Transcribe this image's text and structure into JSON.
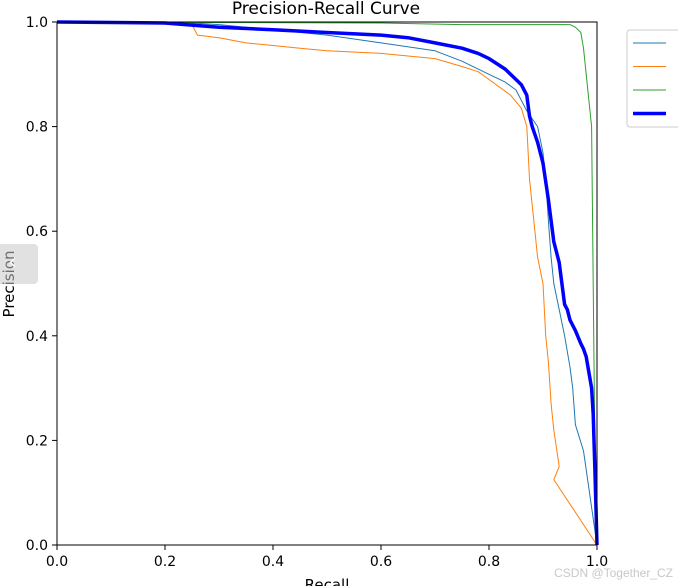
{
  "chart_data": {
    "type": "line",
    "title": "Precision-Recall Curve",
    "xlabel": "Recall",
    "ylabel": "Precision",
    "xlim": [
      0,
      1
    ],
    "ylim": [
      0,
      1
    ],
    "xticks": [
      "0.0",
      "0.2",
      "0.4",
      "0.6",
      "0.8",
      "1.0"
    ],
    "yticks": [
      "0.0",
      "0.2",
      "0.4",
      "0.6",
      "0.8",
      "1.0"
    ],
    "grid": false,
    "legend_position": "top-right, outside plot",
    "series": [
      {
        "name": "",
        "color": "#1f77b4",
        "width": 1,
        "points": [
          [
            0,
            1
          ],
          [
            0.22,
            1
          ],
          [
            0.3,
            0.995
          ],
          [
            0.4,
            0.985
          ],
          [
            0.5,
            0.975
          ],
          [
            0.6,
            0.96
          ],
          [
            0.7,
            0.945
          ],
          [
            0.75,
            0.925
          ],
          [
            0.8,
            0.9
          ],
          [
            0.83,
            0.885
          ],
          [
            0.85,
            0.87
          ],
          [
            0.87,
            0.83
          ],
          [
            0.89,
            0.8
          ],
          [
            0.9,
            0.75
          ],
          [
            0.905,
            0.7
          ],
          [
            0.91,
            0.62
          ],
          [
            0.915,
            0.55
          ],
          [
            0.92,
            0.5
          ],
          [
            0.93,
            0.45
          ],
          [
            0.94,
            0.4
          ],
          [
            0.95,
            0.34
          ],
          [
            0.955,
            0.3
          ],
          [
            0.96,
            0.23
          ],
          [
            0.975,
            0.18
          ],
          [
            1.0,
            0.0
          ]
        ]
      },
      {
        "name": "",
        "color": "#ff7f0e",
        "width": 1,
        "points": [
          [
            0,
            1
          ],
          [
            0.25,
            0.995
          ],
          [
            0.26,
            0.975
          ],
          [
            0.3,
            0.97
          ],
          [
            0.35,
            0.96
          ],
          [
            0.4,
            0.955
          ],
          [
            0.45,
            0.95
          ],
          [
            0.5,
            0.945
          ],
          [
            0.6,
            0.94
          ],
          [
            0.65,
            0.935
          ],
          [
            0.7,
            0.93
          ],
          [
            0.75,
            0.915
          ],
          [
            0.78,
            0.905
          ],
          [
            0.8,
            0.89
          ],
          [
            0.84,
            0.86
          ],
          [
            0.86,
            0.835
          ],
          [
            0.87,
            0.8
          ],
          [
            0.875,
            0.7
          ],
          [
            0.88,
            0.65
          ],
          [
            0.885,
            0.6
          ],
          [
            0.89,
            0.55
          ],
          [
            0.9,
            0.5
          ],
          [
            0.905,
            0.4
          ],
          [
            0.91,
            0.35
          ],
          [
            0.915,
            0.27
          ],
          [
            0.92,
            0.22
          ],
          [
            0.93,
            0.15
          ],
          [
            0.92,
            0.125
          ],
          [
            1.0,
            0.0
          ]
        ]
      },
      {
        "name": "",
        "color": "#2ca02c",
        "width": 1,
        "points": [
          [
            0,
            1
          ],
          [
            0.6,
            0.998
          ],
          [
            0.75,
            0.995
          ],
          [
            0.95,
            0.995
          ],
          [
            0.96,
            0.99
          ],
          [
            0.97,
            0.98
          ],
          [
            0.975,
            0.95
          ],
          [
            0.98,
            0.9
          ],
          [
            0.985,
            0.85
          ],
          [
            0.99,
            0.8
          ],
          [
            0.993,
            0.5
          ],
          [
            0.996,
            0.2
          ],
          [
            1.0,
            0.0
          ]
        ]
      },
      {
        "name": "",
        "color": "#0000ff",
        "width": 3.5,
        "points": [
          [
            0,
            1
          ],
          [
            0.2,
            0.998
          ],
          [
            0.3,
            0.99
          ],
          [
            0.4,
            0.985
          ],
          [
            0.5,
            0.98
          ],
          [
            0.6,
            0.975
          ],
          [
            0.65,
            0.97
          ],
          [
            0.7,
            0.96
          ],
          [
            0.75,
            0.95
          ],
          [
            0.78,
            0.94
          ],
          [
            0.8,
            0.93
          ],
          [
            0.83,
            0.91
          ],
          [
            0.85,
            0.89
          ],
          [
            0.86,
            0.88
          ],
          [
            0.87,
            0.86
          ],
          [
            0.875,
            0.82
          ],
          [
            0.88,
            0.8
          ],
          [
            0.89,
            0.77
          ],
          [
            0.9,
            0.73
          ],
          [
            0.91,
            0.66
          ],
          [
            0.915,
            0.62
          ],
          [
            0.92,
            0.58
          ],
          [
            0.93,
            0.54
          ],
          [
            0.935,
            0.5
          ],
          [
            0.94,
            0.46
          ],
          [
            0.945,
            0.45
          ],
          [
            0.95,
            0.43
          ],
          [
            0.96,
            0.41
          ],
          [
            0.97,
            0.385
          ],
          [
            0.975,
            0.375
          ],
          [
            0.98,
            0.36
          ],
          [
            0.985,
            0.33
          ],
          [
            0.99,
            0.3
          ],
          [
            0.993,
            0.25
          ],
          [
            0.996,
            0.15
          ],
          [
            1.0,
            0.0
          ]
        ]
      }
    ]
  },
  "watermark": "CSDN @Together_CZ",
  "nav_icon": "chevron-left-icon",
  "nav_glyph": "‹"
}
